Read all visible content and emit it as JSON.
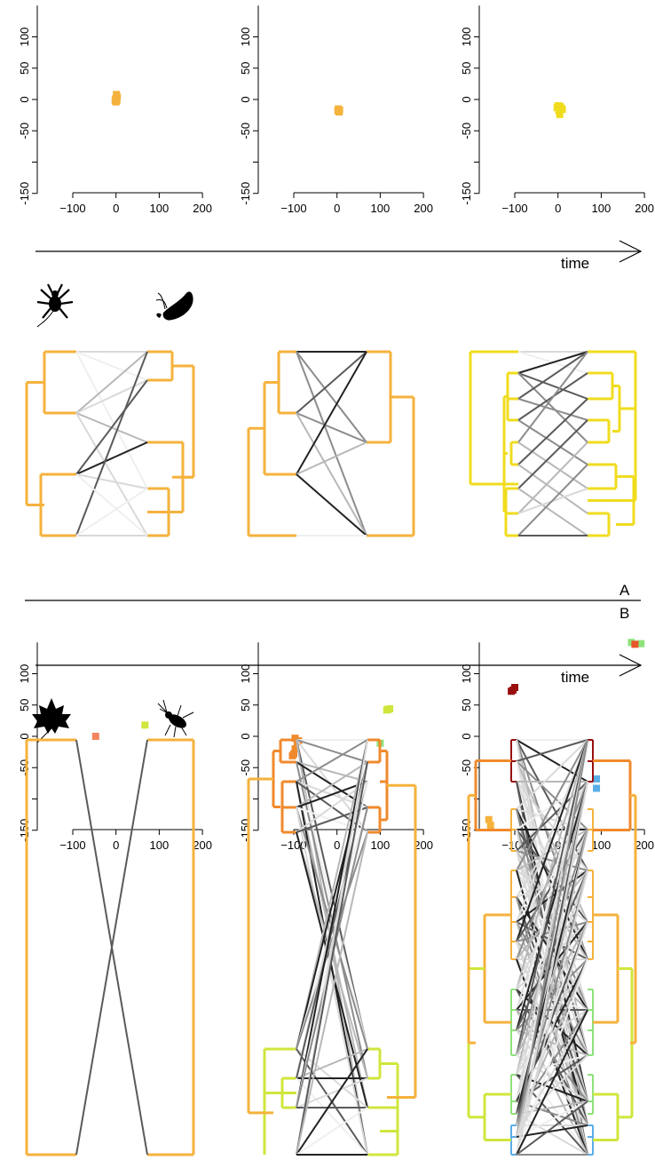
{
  "panel_labels": {
    "top": "A",
    "bottom": "B"
  },
  "time_label": "time",
  "colors": {
    "orange": "#f5b23c",
    "yellow": "#f0dc1e",
    "dark_orange": "#f08a2c",
    "salmon": "#f4845f",
    "lime": "#d0e63c",
    "light_green": "#8ee27a",
    "dark_red": "#990f0f",
    "red_orange": "#e8552a",
    "blue": "#5aaee6"
  },
  "icons": [
    "spider-icon",
    "moth-icon",
    "maple-leaf-icon",
    "beetle-icon"
  ],
  "chart_data": [
    {
      "type": "scatter",
      "panel": "A",
      "step": 1,
      "xlim": [
        -200,
        200
      ],
      "ylim": [
        -150,
        150
      ],
      "x_ticks": [
        "-100",
        "0",
        "100",
        "200"
      ],
      "y_ticks": [
        "-150",
        "-50",
        "0",
        "50",
        "100"
      ],
      "series": [
        {
          "color": "#f5b23c",
          "points": [
            [
              1,
              8
            ],
            [
              3,
              4
            ],
            [
              -1,
              1
            ],
            [
              2,
              -2
            ],
            [
              0,
              -4
            ],
            [
              -2,
              -2
            ]
          ]
        }
      ]
    },
    {
      "type": "scatter",
      "panel": "A",
      "step": 2,
      "xlim": [
        -200,
        200
      ],
      "ylim": [
        -150,
        150
      ],
      "x_ticks": [
        "-100",
        "0",
        "100",
        "200"
      ],
      "y_ticks": [
        "-150",
        "-50",
        "0",
        "50",
        "100"
      ],
      "series": [
        {
          "color": "#f5b23c",
          "points": [
            [
              3,
              -15
            ],
            [
              5,
              -20
            ],
            [
              2,
              -18
            ],
            [
              6,
              -17
            ]
          ]
        }
      ]
    },
    {
      "type": "scatter",
      "panel": "A",
      "step": 3,
      "xlim": [
        -200,
        200
      ],
      "ylim": [
        -150,
        150
      ],
      "x_ticks": [
        "-100",
        "0",
        "100",
        "200"
      ],
      "y_ticks": [
        "-150",
        "-50",
        "0",
        "50",
        "100"
      ],
      "series": [
        {
          "color": "#f0dc1e",
          "points": [
            [
              0,
              -10
            ],
            [
              8,
              -14
            ],
            [
              2,
              -18
            ],
            [
              -2,
              -13
            ],
            [
              4,
              -24
            ],
            [
              10,
              -16
            ],
            [
              5,
              -11
            ]
          ]
        }
      ]
    },
    {
      "type": "scatter",
      "panel": "B",
      "step": 1,
      "xlim": [
        -200,
        200
      ],
      "ylim": [
        -150,
        150
      ],
      "x_ticks": [
        "-100",
        "0",
        "100",
        "200"
      ],
      "y_ticks": [
        "-150",
        "-50",
        "0",
        "50",
        "100"
      ],
      "series": [
        {
          "color": "#f4845f",
          "points": [
            [
              -47,
              0
            ]
          ]
        },
        {
          "color": "#d0e63c",
          "points": [
            [
              67,
              18
            ]
          ]
        }
      ]
    },
    {
      "type": "scatter",
      "panel": "B",
      "step": 2,
      "xlim": [
        -200,
        200
      ],
      "ylim": [
        -150,
        150
      ],
      "x_ticks": [
        "-100",
        "0",
        "100",
        "200"
      ],
      "y_ticks": [
        "-150",
        "-50",
        "0",
        "50",
        "100"
      ],
      "series": [
        {
          "color": "#f08a2c",
          "points": [
            [
              -97,
              -3
            ],
            [
              -92,
              -9
            ],
            [
              -97,
              -20
            ],
            [
              -100,
              -28
            ],
            [
              -103,
              -31
            ],
            [
              -89,
              -7
            ]
          ]
        },
        {
          "color": "#d0e63c",
          "points": [
            [
              115,
              42
            ],
            [
              122,
              44
            ],
            [
              118,
              43
            ]
          ]
        },
        {
          "color": "#8ee27a",
          "points": [
            [
              100,
              -11
            ]
          ]
        }
      ]
    },
    {
      "type": "scatter",
      "panel": "B",
      "step": 3,
      "xlim": [
        -200,
        200
      ],
      "ylim": [
        -150,
        150
      ],
      "x_ticks": [
        "-100",
        "0",
        "100",
        "200"
      ],
      "y_ticks": [
        "-150",
        "-50",
        "0",
        "50",
        "100"
      ],
      "series": [
        {
          "color": "#f5b23c",
          "points": [
            [
              -160,
              -133
            ],
            [
              -156,
              -142
            ]
          ]
        },
        {
          "color": "#990f0f",
          "points": [
            [
              -108,
              72
            ],
            [
              -100,
              78
            ],
            [
              -104,
              74
            ]
          ]
        },
        {
          "color": "#5aaee6",
          "points": [
            [
              89,
              -68
            ],
            [
              89,
              -83
            ]
          ]
        },
        {
          "color": "#8ee27a",
          "points": [
            [
              170,
              150
            ],
            [
              192,
              148
            ]
          ]
        },
        {
          "color": "#e8552a",
          "points": [
            [
              178,
              147
            ]
          ]
        }
      ]
    }
  ]
}
